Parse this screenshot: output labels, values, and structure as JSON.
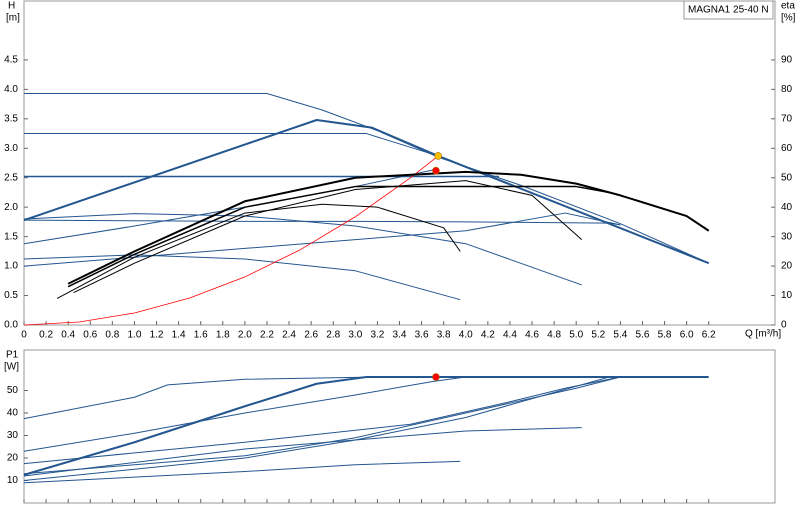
{
  "chart_data": [
    {
      "type": "line",
      "title": "MAGNA1 25-40 N",
      "ylabel": "H",
      "yunit": "[m]",
      "y2label": "eta",
      "y2unit": "[%]",
      "xlabel": "Q [m³/h]",
      "xlim": [
        0,
        6.8
      ],
      "ylim": [
        0,
        5.5
      ],
      "y2lim": [
        0,
        110
      ],
      "xticks": [
        {
          "value": 0,
          "label": "0"
        },
        0.2,
        0.4,
        0.6,
        0.8,
        {
          "value": 1,
          "label": "1.0"
        },
        1.2,
        1.4,
        1.6,
        1.8,
        {
          "value": 2,
          "label": "2.0"
        },
        2.2,
        2.4,
        2.6,
        2.8,
        {
          "value": 3,
          "label": "3.0"
        },
        3.2,
        3.4,
        3.6,
        3.8,
        {
          "value": 4,
          "label": "4.0"
        },
        4.2,
        4.4,
        4.6,
        4.8,
        {
          "value": 5,
          "label": "5.0"
        },
        5.2,
        5.4,
        5.6,
        5.8,
        {
          "value": 6,
          "label": "6.0"
        },
        6.2
      ],
      "yticks": [
        {
          "value": 0,
          "label": "0.0"
        },
        0.5,
        {
          "value": 1,
          "label": "1.0"
        },
        1.5,
        {
          "value": 2,
          "label": "2.0"
        },
        2.5,
        {
          "value": 3,
          "label": "3.0"
        },
        3.5,
        {
          "value": 4,
          "label": "4.0"
        },
        4.5
      ],
      "y2ticks": [
        0,
        10,
        20,
        30,
        40,
        50,
        60,
        70,
        80,
        90
      ],
      "series": [
        {
          "color": "#24568f",
          "linewidth": 1,
          "x": [
            0,
            2.2,
            2.7,
            3.2,
            3.75,
            4.5,
            5.4,
            6.2
          ],
          "values": [
            3.93,
            3.93,
            3.65,
            3.3,
            2.85,
            2.37,
            1.72,
            1.05
          ]
        },
        {
          "color": "#24568f",
          "linewidth": 1,
          "x": [
            0,
            3.1,
            3.75
          ],
          "values": [
            3.25,
            3.25,
            2.87
          ]
        },
        {
          "color": "#24568f",
          "linewidth": 1.5,
          "x": [
            0,
            4.3
          ],
          "values": [
            2.52,
            2.52
          ]
        },
        {
          "color": "#24568f",
          "linewidth": 2,
          "x": [
            0,
            2.65,
            3.15,
            3.75,
            6.2
          ],
          "values": [
            1.78,
            3.48,
            3.35,
            2.87,
            1.05
          ]
        },
        {
          "color": "#24568f",
          "linewidth": 1,
          "x": [
            0,
            1,
            2,
            3,
            3.75
          ],
          "values": [
            1.38,
            1.68,
            2.0,
            2.35,
            2.65
          ]
        },
        {
          "color": "#24568f",
          "linewidth": 1,
          "x": [
            0,
            1,
            2,
            3,
            4,
            5.3,
            5.4
          ],
          "values": [
            1.78,
            1.77,
            1.76,
            1.76,
            1.75,
            1.73,
            1.7
          ]
        },
        {
          "color": "#24568f",
          "linewidth": 1,
          "x": [
            0,
            1,
            2,
            3,
            4,
            5.05
          ],
          "values": [
            1.8,
            1.89,
            1.85,
            1.68,
            1.38,
            0.68
          ]
        },
        {
          "color": "#24568f",
          "linewidth": 1,
          "x": [
            0,
            1,
            2,
            3,
            3.95
          ],
          "values": [
            1.12,
            1.19,
            1.12,
            0.92,
            0.43
          ]
        },
        {
          "color": "#24568f",
          "linewidth": 1,
          "x": [
            0,
            2,
            4,
            4.9,
            5.4
          ],
          "values": [
            1.0,
            1.3,
            1.6,
            1.9,
            1.7
          ]
        },
        {
          "color": "#ff0000",
          "linewidth": 0.8,
          "x": [
            0,
            0.5,
            1,
            1.5,
            2,
            2.5,
            3,
            3.5,
            3.75
          ],
          "values": [
            0,
            0.051,
            0.204,
            0.459,
            0.816,
            1.276,
            1.837,
            2.5,
            2.87
          ]
        },
        {
          "color": "#000000",
          "linewidth": 2,
          "axis": "y2",
          "x": [
            0.4,
            1,
            2,
            3,
            4,
            4.5,
            5,
            5.4,
            6,
            6.2
          ],
          "values": [
            14,
            25,
            42,
            50,
            52,
            51,
            48,
            44,
            37,
            32
          ]
        },
        {
          "color": "#000000",
          "linewidth": 1,
          "axis": "y2",
          "x": [
            0.3,
            1,
            2,
            2.7,
            3.2,
            3.8,
            3.95
          ],
          "values": [
            9,
            23,
            38,
            41,
            40,
            33,
            25
          ]
        },
        {
          "color": "#000000",
          "linewidth": 1,
          "axis": "y2",
          "x": [
            0.45,
            1,
            2,
            3,
            4,
            4.6,
            5.05
          ],
          "values": [
            11,
            21,
            37,
            46,
            49,
            44,
            29
          ]
        },
        {
          "color": "#000000",
          "linewidth": 1.5,
          "axis": "y2",
          "x": [
            0.4,
            1,
            2,
            3,
            4,
            5,
            5.3
          ],
          "values": [
            13,
            24,
            40,
            47,
            47,
            47,
            45
          ]
        }
      ],
      "markers": [
        {
          "x": 3.75,
          "y": 2.87,
          "color": "#ffc000"
        },
        {
          "x": 3.73,
          "y": 2.62,
          "color": "#ff0000"
        }
      ]
    },
    {
      "type": "line",
      "ylabel": "P1",
      "yunit": "[W]",
      "xlim": [
        0,
        6.8
      ],
      "ylim": [
        0,
        68
      ],
      "yticks": [
        10,
        20,
        30,
        40,
        50
      ],
      "series": [
        {
          "color": "#24568f",
          "linewidth": 2,
          "x": [
            0,
            1,
            2,
            2.65,
            3.1,
            6.2
          ],
          "values": [
            12.5,
            27,
            43,
            53,
            56,
            56
          ]
        },
        {
          "color": "#24568f",
          "linewidth": 1,
          "x": [
            0,
            1,
            1.3,
            2,
            3.2
          ],
          "values": [
            37.5,
            47,
            52.5,
            55,
            56
          ]
        },
        {
          "color": "#24568f",
          "linewidth": 1,
          "x": [
            0,
            1,
            2,
            3,
            3.7,
            4
          ],
          "values": [
            23,
            31,
            40,
            48,
            54,
            56
          ]
        },
        {
          "color": "#24568f",
          "linewidth": 1,
          "x": [
            0,
            2,
            3.5,
            4.4,
            4.9,
            5.4
          ],
          "values": [
            17.5,
            27,
            35,
            45,
            51,
            56
          ]
        },
        {
          "color": "#24568f",
          "linewidth": 1,
          "x": [
            0,
            2,
            3,
            4,
            4.5,
            5.3
          ],
          "values": [
            10,
            20,
            28,
            38,
            45,
            56
          ]
        },
        {
          "color": "#24568f",
          "linewidth": 1,
          "x": [
            0,
            2,
            3,
            3.95
          ],
          "values": [
            9,
            14,
            17,
            18.5
          ]
        },
        {
          "color": "#24568f",
          "linewidth": 1,
          "x": [
            0,
            2,
            3,
            4,
            5.05
          ],
          "values": [
            12,
            24,
            28,
            32,
            33.5
          ]
        },
        {
          "color": "#24568f",
          "linewidth": 1,
          "x": [
            0,
            2,
            3,
            4,
            5,
            5.4
          ],
          "values": [
            13,
            21,
            29,
            40,
            51,
            56
          ]
        }
      ],
      "markers": [
        {
          "x": 3.73,
          "y": 56,
          "color": "#ff0000"
        }
      ]
    }
  ]
}
